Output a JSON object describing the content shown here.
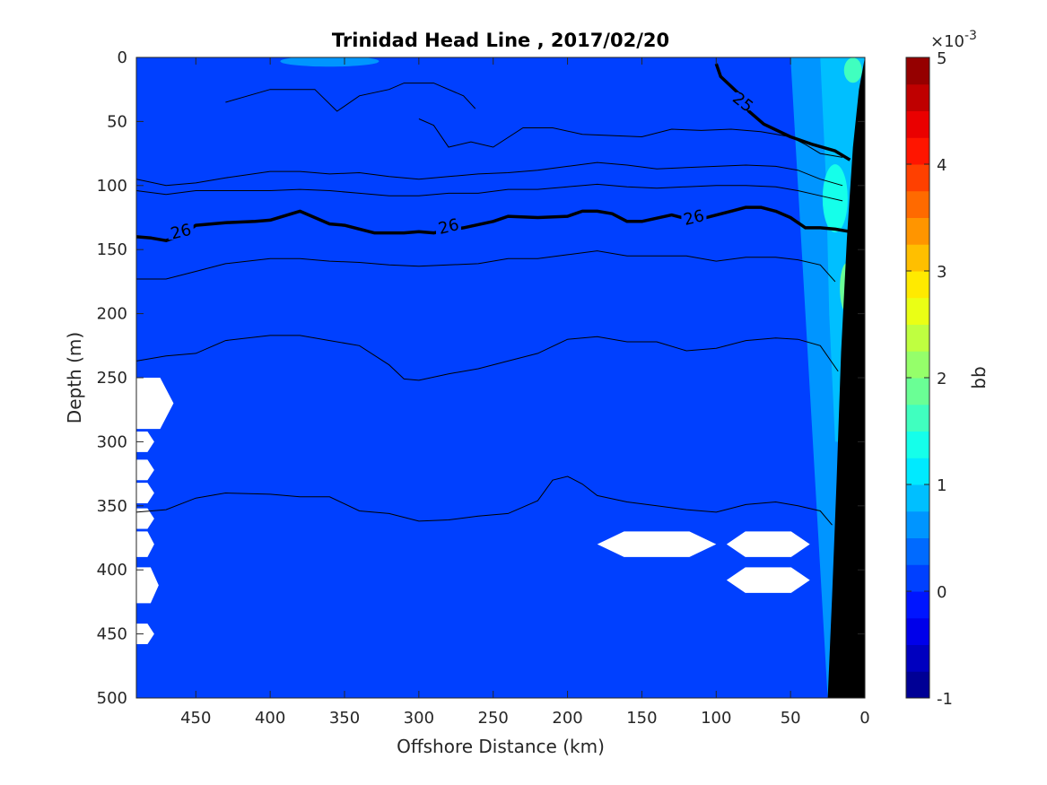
{
  "chart_data": {
    "type": "heatmap",
    "subtype": "filled-contour section",
    "title": "Trinidad Head Line , 2017/02/20",
    "xlabel": "Offshore Distance (km)",
    "ylabel": "Depth (m)",
    "xlim": [
      490,
      0
    ],
    "x_reversed": true,
    "ylim": [
      0,
      500
    ],
    "y_reversed": true,
    "xticks": [
      450,
      400,
      350,
      300,
      250,
      200,
      150,
      100,
      50,
      0
    ],
    "yticks": [
      0,
      50,
      100,
      150,
      200,
      250,
      300,
      350,
      400,
      450,
      500
    ],
    "colorbar": {
      "label": "bb",
      "exponent_label": "×10",
      "exponent_power": "-3",
      "range": [
        -1,
        5
      ],
      "ticks": [
        -1,
        0,
        1,
        2,
        3,
        4,
        5
      ],
      "levels": [
        -1,
        -0.75,
        -0.5,
        -0.25,
        0,
        0.25,
        0.5,
        0.75,
        1,
        1.25,
        1.5,
        1.75,
        2,
        2.25,
        2.5,
        2.75,
        3,
        3.25,
        3.5,
        3.75,
        4,
        4.25,
        4.5,
        4.75,
        5
      ],
      "colormap": "jet"
    },
    "background_value": 0.1,
    "nearshore_values": {
      "surface_bloom_near_coast": 1.5,
      "subsurface_max_depth_m": 110,
      "subsurface_max_value": 1.4,
      "band_value": 0.6
    },
    "isopycnals": [
      {
        "label": "25",
        "bold": true,
        "points": [
          [
            100,
            5
          ],
          [
            97,
            15
          ],
          [
            85,
            28
          ],
          [
            78,
            42
          ],
          [
            68,
            52
          ],
          [
            50,
            62
          ],
          [
            35,
            68
          ],
          [
            20,
            73
          ],
          [
            10,
            80
          ]
        ]
      },
      {
        "label": "26",
        "bold": true,
        "points": [
          [
            490,
            140
          ],
          [
            480,
            141
          ],
          [
            470,
            143
          ],
          [
            460,
            139
          ],
          [
            450,
            131
          ],
          [
            430,
            129
          ],
          [
            410,
            128
          ],
          [
            400,
            127
          ],
          [
            380,
            120
          ],
          [
            360,
            130
          ],
          [
            350,
            131
          ],
          [
            330,
            137
          ],
          [
            310,
            137
          ],
          [
            300,
            136
          ],
          [
            290,
            137
          ],
          [
            270,
            133
          ],
          [
            250,
            128
          ],
          [
            240,
            124
          ],
          [
            220,
            125
          ],
          [
            200,
            124
          ],
          [
            190,
            120
          ],
          [
            180,
            120
          ],
          [
            170,
            122
          ],
          [
            160,
            128
          ],
          [
            150,
            128
          ],
          [
            130,
            123
          ],
          [
            120,
            126
          ],
          [
            110,
            126
          ],
          [
            90,
            120
          ],
          [
            80,
            117
          ],
          [
            70,
            117
          ],
          [
            60,
            120
          ],
          [
            50,
            125
          ],
          [
            40,
            133
          ],
          [
            30,
            133
          ],
          [
            20,
            134
          ],
          [
            10,
            136
          ]
        ]
      }
    ],
    "thin_contours": [
      {
        "points": [
          [
            430,
            35
          ],
          [
            400,
            25
          ],
          [
            370,
            25
          ],
          [
            355,
            42
          ],
          [
            340,
            30
          ],
          [
            320,
            25
          ],
          [
            310,
            20
          ],
          [
            290,
            20
          ],
          [
            270,
            30
          ],
          [
            262,
            40
          ]
        ]
      },
      {
        "points": [
          [
            300,
            48
          ],
          [
            290,
            53
          ],
          [
            280,
            70
          ],
          [
            265,
            66
          ],
          [
            250,
            70
          ],
          [
            230,
            55
          ],
          [
            210,
            55
          ],
          [
            190,
            60
          ],
          [
            170,
            61
          ],
          [
            150,
            62
          ],
          [
            130,
            56
          ],
          [
            110,
            57
          ],
          [
            90,
            56
          ],
          [
            70,
            58
          ],
          [
            50,
            62
          ],
          [
            40,
            68
          ],
          [
            30,
            75
          ],
          [
            15,
            78
          ]
        ]
      },
      {
        "points": [
          [
            490,
            95
          ],
          [
            470,
            100
          ],
          [
            450,
            98
          ],
          [
            430,
            94
          ],
          [
            400,
            89
          ],
          [
            380,
            89
          ],
          [
            360,
            91
          ],
          [
            340,
            90
          ],
          [
            320,
            93
          ],
          [
            300,
            95
          ],
          [
            280,
            93
          ],
          [
            260,
            91
          ],
          [
            240,
            90
          ],
          [
            220,
            88
          ],
          [
            200,
            85
          ],
          [
            180,
            82
          ],
          [
            160,
            84
          ],
          [
            140,
            87
          ],
          [
            120,
            86
          ],
          [
            100,
            85
          ],
          [
            80,
            84
          ],
          [
            60,
            85
          ],
          [
            45,
            88
          ],
          [
            30,
            95
          ],
          [
            15,
            100
          ]
        ]
      },
      {
        "points": [
          [
            490,
            104
          ],
          [
            470,
            107
          ],
          [
            450,
            104
          ],
          [
            430,
            104
          ],
          [
            400,
            104
          ],
          [
            380,
            103
          ],
          [
            360,
            104
          ],
          [
            340,
            106
          ],
          [
            320,
            108
          ],
          [
            300,
            108
          ],
          [
            280,
            106
          ],
          [
            260,
            106
          ],
          [
            240,
            103
          ],
          [
            220,
            103
          ],
          [
            200,
            101
          ],
          [
            180,
            99
          ],
          [
            160,
            101
          ],
          [
            140,
            102
          ],
          [
            120,
            101
          ],
          [
            100,
            100
          ],
          [
            80,
            100
          ],
          [
            60,
            101
          ],
          [
            45,
            104
          ],
          [
            30,
            108
          ],
          [
            15,
            112
          ]
        ]
      },
      {
        "points": [
          [
            490,
            173
          ],
          [
            470,
            173
          ],
          [
            450,
            167
          ],
          [
            430,
            161
          ],
          [
            400,
            157
          ],
          [
            380,
            157
          ],
          [
            360,
            159
          ],
          [
            340,
            160
          ],
          [
            320,
            162
          ],
          [
            300,
            163
          ],
          [
            280,
            162
          ],
          [
            260,
            161
          ],
          [
            240,
            157
          ],
          [
            220,
            157
          ],
          [
            200,
            154
          ],
          [
            180,
            151
          ],
          [
            160,
            155
          ],
          [
            140,
            155
          ],
          [
            120,
            155
          ],
          [
            100,
            159
          ],
          [
            80,
            156
          ],
          [
            60,
            156
          ],
          [
            45,
            158
          ],
          [
            30,
            162
          ],
          [
            20,
            175
          ]
        ]
      },
      {
        "points": [
          [
            490,
            237
          ],
          [
            470,
            233
          ],
          [
            450,
            231
          ],
          [
            430,
            221
          ],
          [
            400,
            217
          ],
          [
            380,
            217
          ],
          [
            360,
            221
          ],
          [
            340,
            225
          ],
          [
            320,
            240
          ],
          [
            310,
            251
          ],
          [
            300,
            252
          ],
          [
            280,
            247
          ],
          [
            260,
            243
          ],
          [
            240,
            237
          ],
          [
            220,
            231
          ],
          [
            200,
            220
          ],
          [
            180,
            218
          ],
          [
            160,
            222
          ],
          [
            140,
            222
          ],
          [
            120,
            229
          ],
          [
            100,
            227
          ],
          [
            80,
            221
          ],
          [
            60,
            219
          ],
          [
            45,
            220
          ],
          [
            30,
            225
          ],
          [
            18,
            245
          ]
        ]
      },
      {
        "points": [
          [
            490,
            355
          ],
          [
            470,
            353
          ],
          [
            450,
            344
          ],
          [
            430,
            340
          ],
          [
            400,
            341
          ],
          [
            380,
            343
          ],
          [
            360,
            343
          ],
          [
            340,
            354
          ],
          [
            320,
            356
          ],
          [
            300,
            362
          ],
          [
            280,
            361
          ],
          [
            260,
            358
          ],
          [
            240,
            356
          ],
          [
            220,
            346
          ],
          [
            210,
            330
          ],
          [
            200,
            327
          ],
          [
            190,
            333
          ],
          [
            180,
            342
          ],
          [
            160,
            347
          ],
          [
            140,
            350
          ],
          [
            120,
            353
          ],
          [
            100,
            355
          ],
          [
            80,
            349
          ],
          [
            60,
            347
          ],
          [
            45,
            350
          ],
          [
            30,
            354
          ],
          [
            22,
            365
          ]
        ]
      }
    ],
    "missing_patches": [
      {
        "x": 485,
        "y": 270,
        "rx": 20,
        "ry": 20
      },
      {
        "x": 488,
        "y": 300,
        "rx": 10,
        "ry": 8
      },
      {
        "x": 488,
        "y": 322,
        "rx": 10,
        "ry": 8
      },
      {
        "x": 488,
        "y": 340,
        "rx": 10,
        "ry": 8
      },
      {
        "x": 488,
        "y": 360,
        "rx": 10,
        "ry": 8
      },
      {
        "x": 488,
        "y": 380,
        "rx": 10,
        "ry": 10
      },
      {
        "x": 487,
        "y": 412,
        "rx": 12,
        "ry": 14
      },
      {
        "x": 488,
        "y": 450,
        "rx": 10,
        "ry": 8
      },
      {
        "x": 140,
        "y": 380,
        "rx": 40,
        "ry": 10
      },
      {
        "x": 65,
        "y": 380,
        "rx": 28,
        "ry": 10
      },
      {
        "x": 65,
        "y": 408,
        "rx": 28,
        "ry": 10
      }
    ],
    "bottom_topography": {
      "color": "#000000",
      "points": [
        [
          0,
          0
        ],
        [
          0,
          500
        ],
        [
          25,
          500
        ],
        [
          22,
          420
        ],
        [
          19,
          330
        ],
        [
          16,
          230
        ],
        [
          12,
          140
        ],
        [
          8,
          70
        ],
        [
          4,
          25
        ],
        [
          0,
          0
        ]
      ]
    }
  },
  "colors": {
    "background_level": "#0f5fff",
    "missing": "#ffffff",
    "contour": "#000000",
    "jet_stops": [
      "#00008f",
      "#0000ff",
      "#00ffff",
      "#ffff00",
      "#ff0000",
      "#800000"
    ]
  }
}
